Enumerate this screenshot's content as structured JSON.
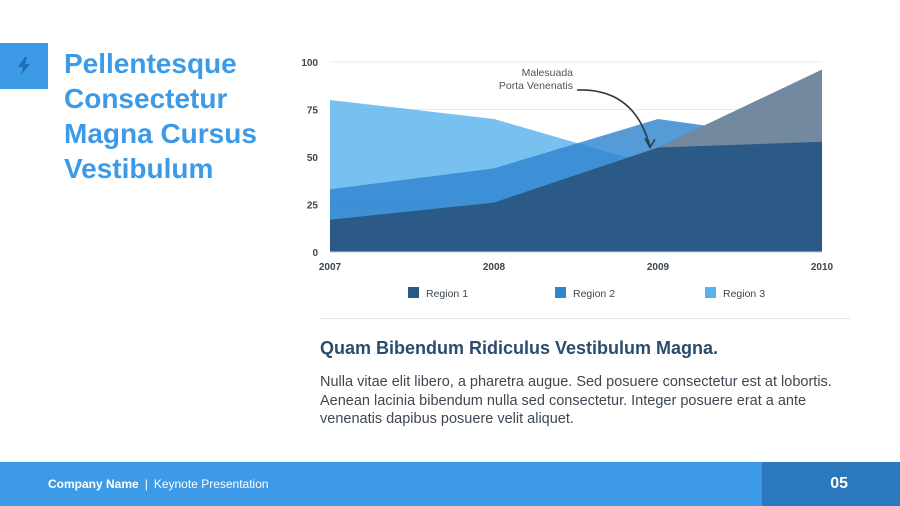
{
  "slide": {
    "title_lines": [
      "Pellentesque",
      "Consectetur",
      "Magna Cursus",
      "Vestibulum"
    ],
    "subheading": "Quam Bibendum Ridiculus Vestibulum Magna.",
    "body": "Nulla vitae elit libero, a pharetra augue. Sed posuere consectetur est at lobortis. Aenean lacinia bibendum nulla sed consectetur. Integer posuere erat a ante venenatis dapibus posuere velit aliquet.",
    "logo_icon": "lightning-bolt-icon"
  },
  "footer": {
    "company": "Company Name",
    "separator": "|",
    "presentation": "Keynote Presentation",
    "page_number": "05"
  },
  "colors": {
    "accent": "#3d9ae6",
    "footer_dark": "#2c78be",
    "region1": "#2a5a85",
    "region2": "#2f85cf",
    "region3": "#5ab2ed",
    "annotation_overlay": "#8c99a8"
  },
  "chart_data": {
    "type": "area",
    "x": [
      "2007",
      "2008",
      "2009",
      "2010"
    ],
    "ylim": [
      0,
      100
    ],
    "yticks": [
      "0",
      "25",
      "50",
      "75",
      "100"
    ],
    "grid": true,
    "legend_position": "bottom",
    "series": [
      {
        "name": "Region 1",
        "values": [
          17,
          26,
          55,
          96
        ]
      },
      {
        "name": "Region 2",
        "values": [
          33,
          44,
          70,
          58
        ]
      },
      {
        "name": "Region 3",
        "values": [
          80,
          70,
          45,
          45
        ]
      }
    ],
    "annotation": {
      "lines": [
        "Malesuada",
        "Porta Venenatis"
      ],
      "target_x": "2009",
      "target_y": 53
    }
  }
}
